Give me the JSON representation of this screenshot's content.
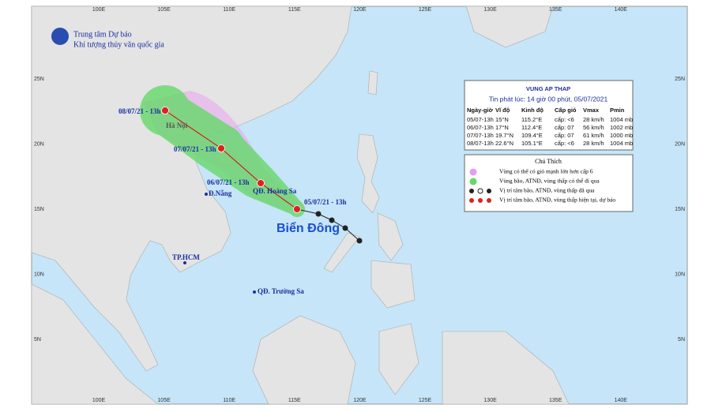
{
  "header": {
    "org_line1": "Trung tâm Dự báo",
    "org_line2": "Khí tượng thủy văn quốc gia"
  },
  "map": {
    "lon_labels": [
      "100E",
      "105E",
      "110E",
      "115E",
      "120E",
      "125E",
      "130E",
      "135E",
      "140E"
    ],
    "lat_labels": [
      "25N",
      "20N",
      "15N",
      "10N",
      "5N"
    ],
    "places": {
      "hanoi": "Hà Nội",
      "danang": "Đ.Nẵng",
      "hcm": "TP.HCM",
      "hoangsa": "QĐ. Hoàng Sa",
      "truongsa": "QĐ. Trường Sa",
      "biendong": "Biển Đông"
    },
    "track_labels": [
      "08/07/21 - 13h",
      "07/07/21 - 13h",
      "06/07/21 - 13h",
      "05/07/21 - 13h"
    ]
  },
  "table": {
    "title": "VUNG AP THAP",
    "issued": "Tin phát lúc: 14 giờ 00 phút, 05/07/2021",
    "columns": [
      "Ngày-giờ",
      "Vĩ độ",
      "Kinh độ",
      "Cấp gió",
      "Vmax",
      "Pmin"
    ],
    "rows": [
      [
        "05/07-13h",
        "15°N",
        "115.2°E",
        "cấp: <6",
        "28 km/h",
        "1004 mb"
      ],
      [
        "06/07-13h",
        "17°N",
        "112.4°E",
        "cấp: 07",
        "56 km/h",
        "1002 mb"
      ],
      [
        "07/07-13h",
        "19.7°N",
        "109.4°E",
        "cấp: 07",
        "61 km/h",
        "1000 mb"
      ],
      [
        "08/07-13h",
        "22.6°N",
        "105.1°E",
        "cấp: <6",
        "28 km/h",
        "1004 mb"
      ]
    ]
  },
  "legend": {
    "title": "Chú Thích",
    "items": [
      "Vùng có thể có gió mạnh lớn hơn cấp 6",
      "Vùng bão, ATNĐ, vùng thấp có thể đi qua",
      "Vị trí tâm bão, ATNĐ, vùng thấp đã qua",
      "Vị trí tâm bão, ATNĐ, vùng thấp hiện tại, dự báo"
    ]
  }
}
